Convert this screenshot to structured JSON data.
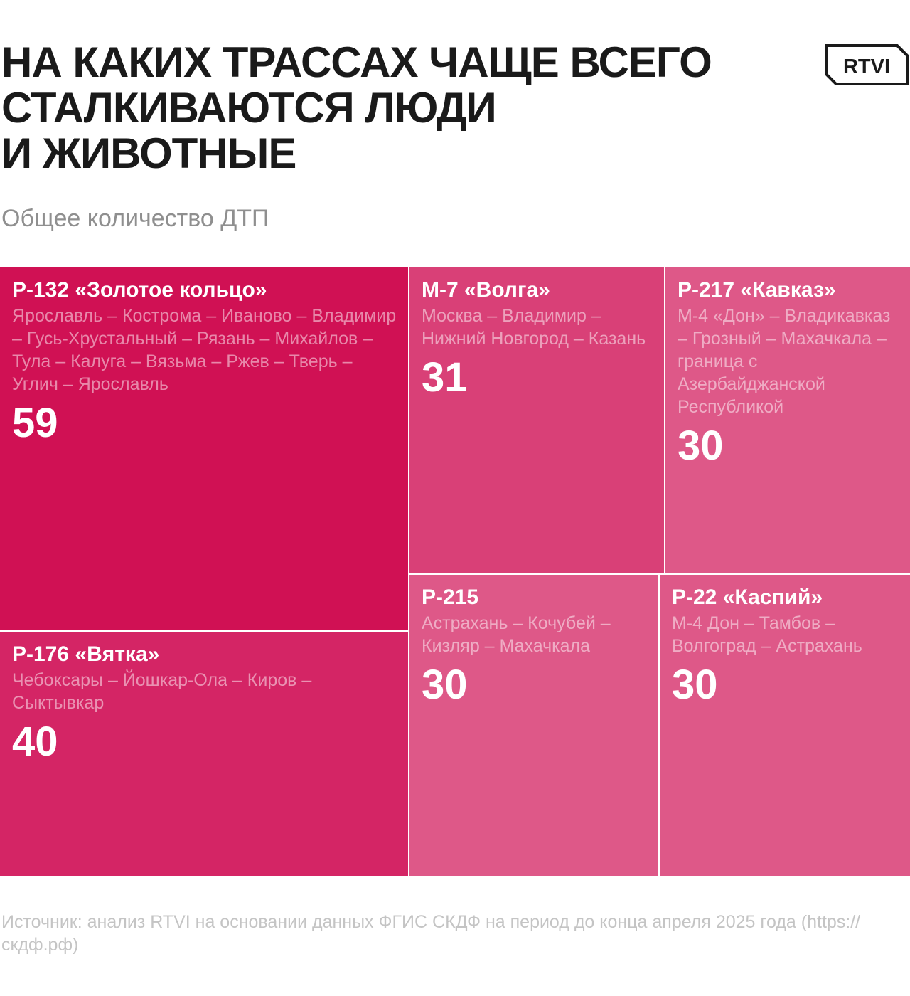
{
  "title": "НА КАКИХ ТРАССАХ ЧАЩЕ ВСЕГО\nСТАЛКИВАЮТСЯ ЛЮДИ\nИ ЖИВОТНЫЕ",
  "logo": {
    "text": "RTVI",
    "icon": "rtvi-logo-icon"
  },
  "subtitle": "Общее количество ДТП",
  "colors": {
    "title": "#1a1a1a",
    "subtitle": "#8f8f8f",
    "source": "#c4c4c4",
    "cell_text": "#ffffff"
  },
  "chart_data": {
    "type": "treemap",
    "title": "НА КАКИХ ТРАССАХ ЧАЩЕ ВСЕГО СТАЛКИВАЮТСЯ ЛЮДИ И ЖИВОТНЫЕ",
    "subtitle": "Общее количество ДТП",
    "items": [
      {
        "name": "Р-132 «Золотое кольцо»",
        "route": "Ярославль – Кострома – Иваново – Владимир – Гусь-Хрустальный – Рязань – Михайлов – Тула – Калуга – Вязьма – Ржев – Тверь – Углич – Ярославль",
        "value": 59,
        "color": "#d01154"
      },
      {
        "name": "Р-176 «Вятка»",
        "route": "Чебоксары – Йошкар-Ола – Киров – Сыктывкар",
        "value": 40,
        "color": "#d42565"
      },
      {
        "name": "М-7 «Волга»",
        "route": "Москва – Владимир – Нижний Новгород – Казань",
        "value": 31,
        "color": "#d94077"
      },
      {
        "name": "Р-217 «Кавказ»",
        "route": "М-4 «Дон» – Владикавказ – Грозный – Махачкала – граница с Азербайджанской Республикой",
        "value": 30,
        "color": "#de5888"
      },
      {
        "name": "Р-215",
        "route": "Астрахань – Кочубей – Кизляр – Махачкала",
        "value": 30,
        "color": "#de5888"
      },
      {
        "name": "Р-22 «Каспий»",
        "route": "М-4 Дон – Тамбов – Волгоград – Астрахань",
        "value": 30,
        "color": "#de5888"
      }
    ]
  },
  "source": "Источник: анализ RTVI на основании данных ФГИС СКДФ на период до конца апреля 2025 года (https://скдф.рф)"
}
